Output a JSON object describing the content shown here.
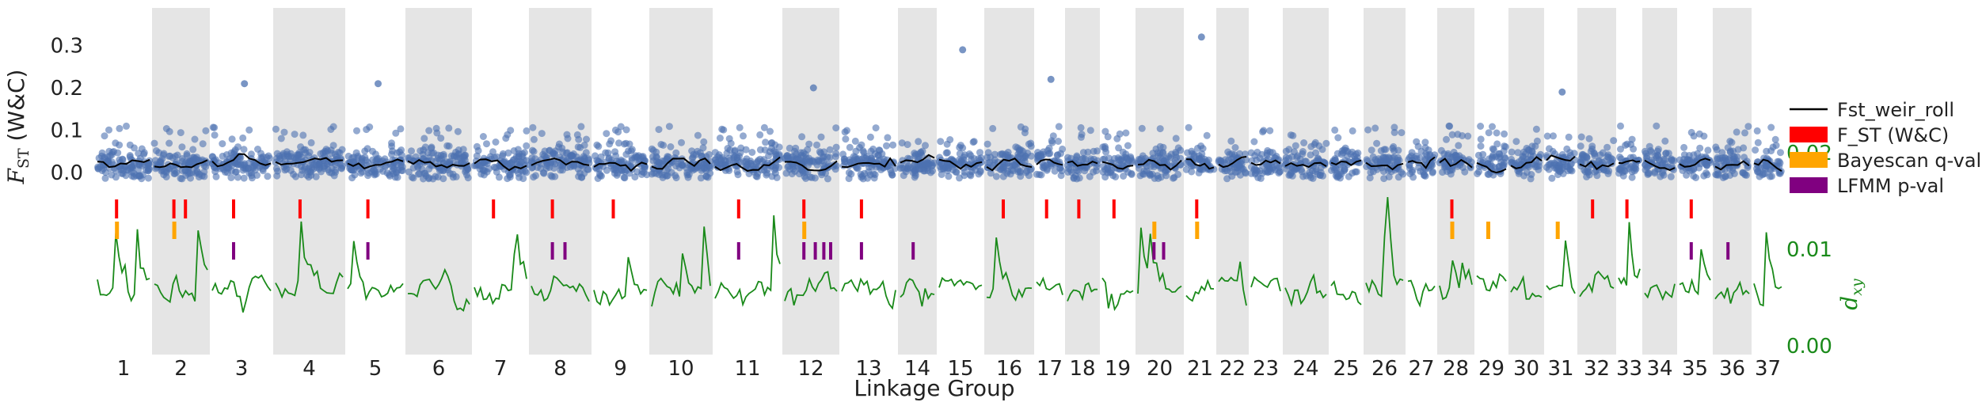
{
  "chart_data": {
    "type": "scatter",
    "xlabel": "Linkage Group",
    "ylabel_left": "F_ST (W&C)",
    "ylabel_right": "d_xy",
    "left_axis": {
      "ticks": [
        "0.0",
        "0.1",
        "0.2",
        "0.3"
      ],
      "ylim": [
        -0.03,
        0.36
      ]
    },
    "right_axis": {
      "ticks": [
        "0.00",
        "0.01",
        "0.02"
      ],
      "ylim": [
        0.0,
        0.021
      ]
    },
    "linkage_groups": [
      "1",
      "2",
      "3",
      "4",
      "5",
      "6",
      "7",
      "8",
      "9",
      "10",
      "11",
      "12",
      "13",
      "14",
      "15",
      "16",
      "17",
      "18",
      "19",
      "20",
      "21",
      "22",
      "23",
      "24",
      "25",
      "26",
      "27",
      "28",
      "29",
      "30",
      "31",
      "32",
      "33",
      "34",
      "35",
      "36",
      "37"
    ],
    "legend": [
      {
        "label": "Fst_weir_roll",
        "kind": "line",
        "color": "#000000"
      },
      {
        "label": "F_ST (W&C)",
        "kind": "patch",
        "color": "#ff0000"
      },
      {
        "label": "Bayescan q-val",
        "kind": "patch",
        "color": "#ffa500"
      },
      {
        "label": "LFMM p-val",
        "kind": "patch",
        "color": "#800080"
      }
    ],
    "colors": {
      "points": "#4c72b0",
      "rolling": "#000000",
      "dxy": "#1a8a1a",
      "shade": "#e5e5e5",
      "fst_outlier": "#ff0000",
      "bayescan": "#ffa500",
      "lfmm": "#800080"
    },
    "fst_outlier_groups": [
      "1",
      "2",
      "2",
      "3",
      "4",
      "5",
      "7",
      "8",
      "9",
      "11",
      "12",
      "13",
      "16",
      "17",
      "18",
      "19",
      "21",
      "28",
      "32",
      "33",
      "35"
    ],
    "bayescan_groups": [
      "1",
      "2",
      "12",
      "20",
      "21",
      "28",
      "29",
      "31"
    ],
    "lfmm_groups": [
      "3",
      "5",
      "8",
      "8",
      "11",
      "12",
      "12",
      "12",
      "12",
      "13",
      "14",
      "20",
      "20",
      "35",
      "36"
    ],
    "notable_fst_peaks": {
      "5": 0.21,
      "3": 0.21,
      "12": 0.2,
      "15": 0.29,
      "17": 0.22,
      "21": 0.32,
      "31": 0.19
    }
  }
}
